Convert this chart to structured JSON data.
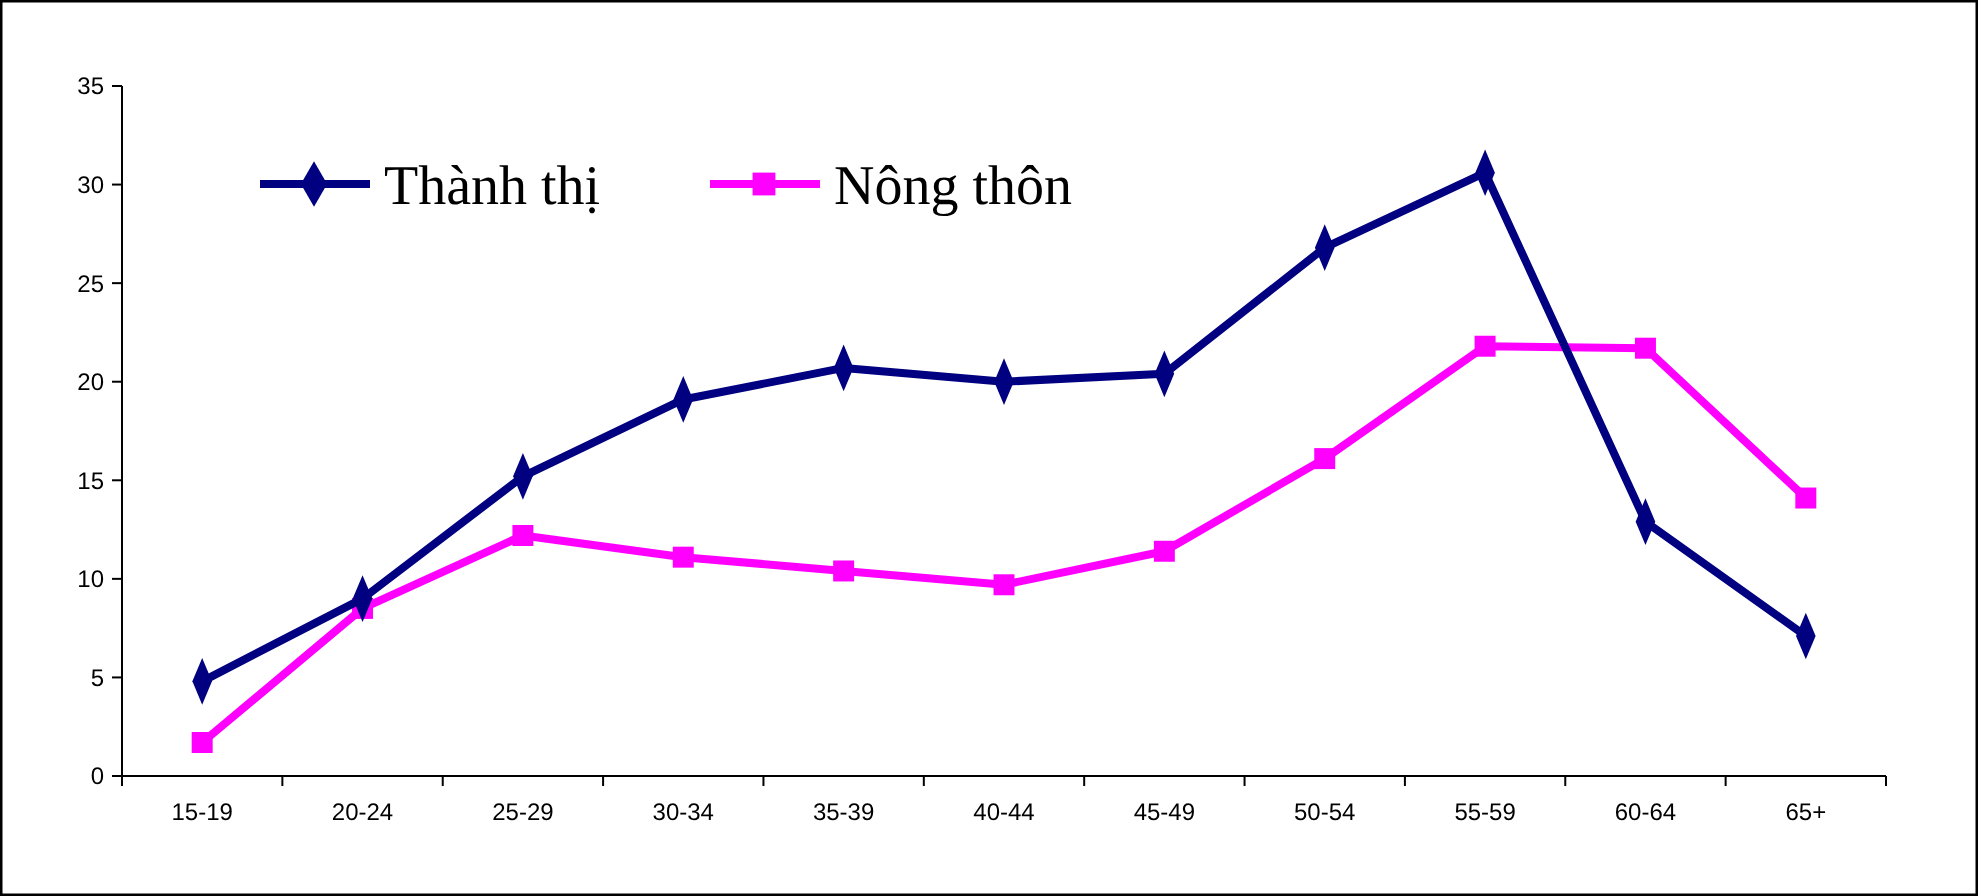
{
  "chart_data": {
    "type": "line",
    "categories": [
      "15-19",
      "20-24",
      "25-29",
      "30-34",
      "35-39",
      "40-44",
      "45-49",
      "50-54",
      "55-59",
      "60-64",
      "65+"
    ],
    "series": [
      {
        "name": "Thành thị",
        "color": "#000080",
        "marker": "diamond",
        "values": [
          4.8,
          9.0,
          15.2,
          19.1,
          20.7,
          20.0,
          20.4,
          26.8,
          30.6,
          12.9,
          7.1
        ]
      },
      {
        "name": "Nông thôn",
        "color": "#ff00ff",
        "marker": "square",
        "values": [
          1.7,
          8.5,
          12.2,
          11.1,
          10.4,
          9.7,
          11.4,
          16.1,
          21.8,
          21.7,
          14.1
        ]
      }
    ],
    "ylim": [
      0,
      35
    ],
    "yticks": [
      0,
      5,
      10,
      15,
      20,
      25,
      30,
      35
    ],
    "grid": false,
    "legend": "top left",
    "line_style": "solid"
  }
}
